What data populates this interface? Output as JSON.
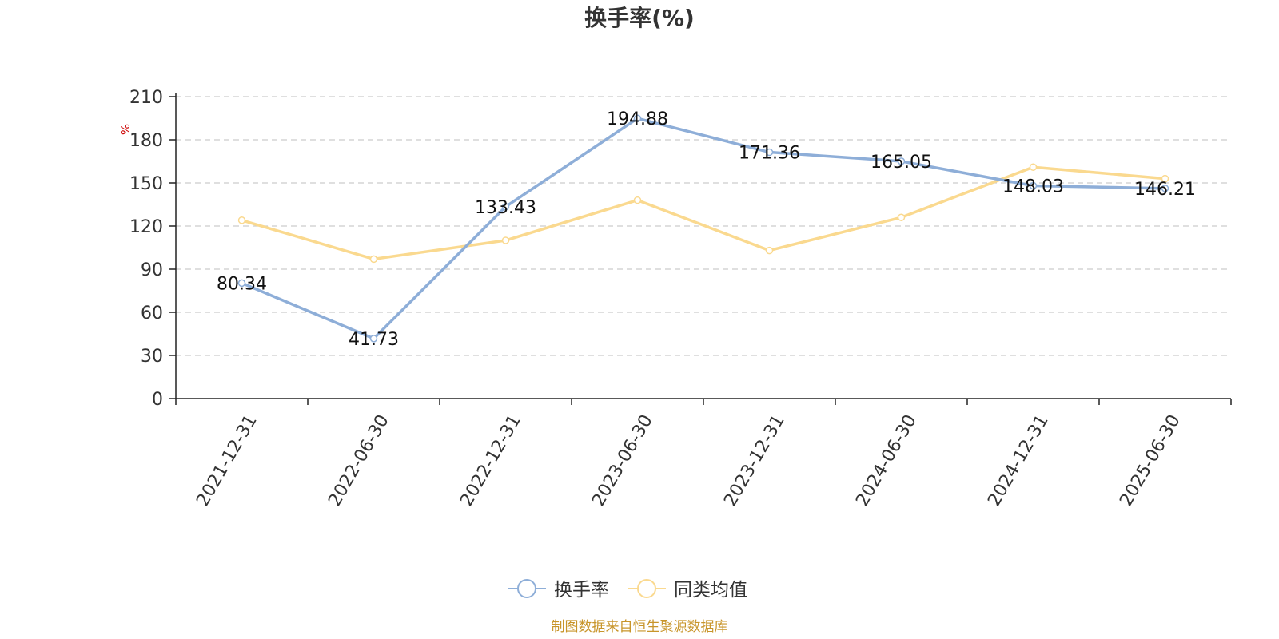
{
  "chart_data": {
    "type": "line",
    "title": "换手率(%)",
    "ylabel": "%",
    "xlabel": "",
    "categories": [
      "2021-12-31",
      "2022-06-30",
      "2022-12-31",
      "2023-06-30",
      "2023-12-31",
      "2024-06-30",
      "2024-12-31",
      "2025-06-30"
    ],
    "ylim": [
      0,
      210
    ],
    "yticks": [
      0,
      30,
      60,
      90,
      120,
      150,
      180,
      210
    ],
    "grid": true,
    "legend_position": "bottom-center",
    "series": [
      {
        "name": "换手率",
        "color": "#8eaed8",
        "values": [
          80.34,
          41.73,
          133.43,
          194.88,
          171.36,
          165.05,
          148.03,
          146.21
        ],
        "labels": [
          "80.34",
          "41.73",
          "133.43",
          "194.88",
          "171.36",
          "165.05",
          "148.03",
          "146.21"
        ]
      },
      {
        "name": "同类均值",
        "color": "#fad98f",
        "values": [
          124,
          97,
          110,
          138,
          103,
          126,
          161,
          153
        ]
      }
    ]
  },
  "colors": {
    "axis_unit": "#cc0000",
    "source": "#c8952a"
  },
  "source_note": "制图数据来自恒生聚源数据库"
}
